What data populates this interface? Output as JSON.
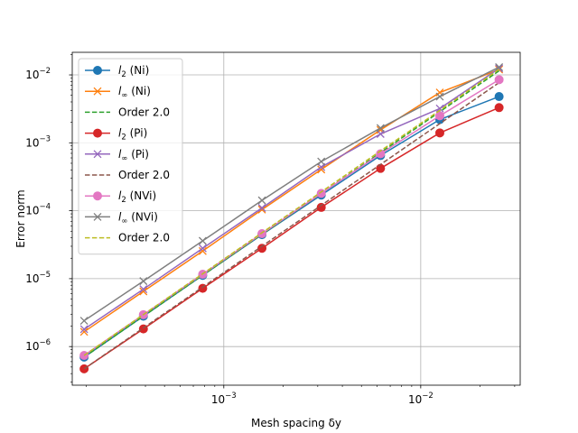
{
  "chart_data": {
    "type": "line",
    "xlabel": "Mesh spacing δy",
    "ylabel": "Error norm",
    "xscale": "log",
    "yscale": "log",
    "xlim": [
      0.00017,
      0.032
    ],
    "ylim": [
      2.7e-07,
      0.0215
    ],
    "grid": true,
    "legend_position": "upper-left",
    "x_major_ticks": [
      {
        "value": 0.001,
        "base": "10",
        "exp": "−3"
      },
      {
        "value": 0.01,
        "base": "10",
        "exp": "−2"
      }
    ],
    "y_major_ticks": [
      {
        "value": 1e-06,
        "base": "10",
        "exp": "−6"
      },
      {
        "value": 1e-05,
        "base": "10",
        "exp": "−5"
      },
      {
        "value": 0.0001,
        "base": "10",
        "exp": "−4"
      },
      {
        "value": 0.001,
        "base": "10",
        "exp": "−3"
      },
      {
        "value": 0.01,
        "base": "10",
        "exp": "−2"
      }
    ],
    "x": [
      0.0001953,
      0.0003906,
      0.0007813,
      0.0015625,
      0.003125,
      0.00625,
      0.0125,
      0.025
    ],
    "series": [
      {
        "label_main": "l",
        "label_sub": "2",
        "label_rest": " (Ni)",
        "color": "#1f77b4",
        "style": "solid",
        "marker": "circle",
        "values": [
          7e-07,
          2.8e-06,
          1.12e-05,
          4.45e-05,
          0.00017,
          0.00065,
          0.0022,
          0.0048
        ]
      },
      {
        "label_main": "l",
        "label_sub": "∞",
        "label_rest": " (Ni)",
        "color": "#ff7f0e",
        "style": "solid",
        "marker": "x",
        "values": [
          1.65e-06,
          6.5e-06,
          2.55e-05,
          0.000104,
          0.000405,
          0.00155,
          0.0055,
          0.012
        ]
      },
      {
        "label_main": "Order 2.0",
        "label_sub": "",
        "label_rest": "",
        "color": "#2ca02c",
        "style": "dashed",
        "marker": "none",
        "values": [
          7e-07,
          2.8e-06,
          1.12e-05,
          4.48e-05,
          0.000179,
          0.000717,
          0.00287,
          0.01147
        ]
      },
      {
        "label_main": "l",
        "label_sub": "2",
        "label_rest": " (Pi)",
        "color": "#d62728",
        "style": "solid",
        "marker": "circle",
        "values": [
          4.7e-07,
          1.82e-06,
          7.2e-06,
          2.8e-05,
          0.000112,
          0.00042,
          0.0014,
          0.0033
        ]
      },
      {
        "label_main": "l",
        "label_sub": "∞",
        "label_rest": " (Pi)",
        "color": "#9467bd",
        "style": "solid",
        "marker": "x",
        "values": [
          1.8e-06,
          7e-06,
          2.8e-05,
          0.00011,
          0.00044,
          0.00135,
          0.0032,
          0.0125
        ]
      },
      {
        "label_main": "Order 2.0",
        "label_sub": "",
        "label_rest": "",
        "color": "#8c564b",
        "style": "dashed",
        "marker": "none",
        "values": [
          4.7e-07,
          1.88e-06,
          7.5e-06,
          3e-05,
          0.00012,
          0.00048,
          0.00192,
          0.0077
        ]
      },
      {
        "label_main": "l",
        "label_sub": "2",
        "label_rest": " (NVi)",
        "color": "#e377c2",
        "style": "solid",
        "marker": "circle",
        "values": [
          7.4e-07,
          2.95e-06,
          1.16e-05,
          4.6e-05,
          0.00018,
          0.00069,
          0.0025,
          0.0085
        ]
      },
      {
        "label_main": "l",
        "label_sub": "∞",
        "label_rest": " (NVi)",
        "color": "#7f7f7f",
        "style": "solid",
        "marker": "x",
        "values": [
          2.4e-06,
          9.2e-06,
          3.6e-05,
          0.000142,
          0.00053,
          0.00165,
          0.0048,
          0.013
        ]
      },
      {
        "label_main": "Order 2.0",
        "label_sub": "",
        "label_rest": "",
        "color": "#bcbd22",
        "style": "dashed",
        "marker": "none",
        "values": [
          7.4e-07,
          2.96e-06,
          1.18e-05,
          4.74e-05,
          0.000189,
          0.00076,
          0.003,
          0.0121
        ]
      }
    ]
  }
}
